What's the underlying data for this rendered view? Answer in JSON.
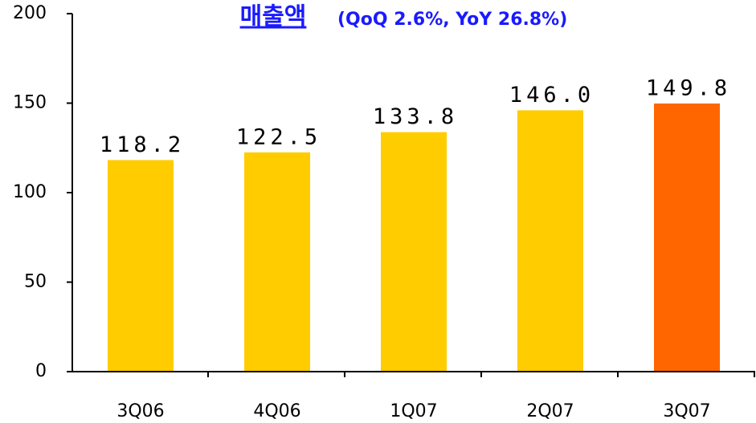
{
  "chart_data": {
    "type": "bar",
    "title": "매출액",
    "subtitle": "(QoQ 2.6%, YoY 26.8%)",
    "categories": [
      "3Q06",
      "4Q06",
      "1Q07",
      "2Q07",
      "3Q07"
    ],
    "values": [
      118.2,
      122.5,
      133.8,
      146.0,
      149.8
    ],
    "value_labels": [
      "118.2",
      "122.5",
      "133.8",
      "146.0",
      "149.8"
    ],
    "colors": [
      "#ffcc00",
      "#ffcc00",
      "#ffcc00",
      "#ffcc00",
      "#ff6600"
    ],
    "ylim": [
      0,
      200
    ],
    "yticks": [
      0,
      50,
      100,
      150,
      200
    ],
    "grid": false
  }
}
